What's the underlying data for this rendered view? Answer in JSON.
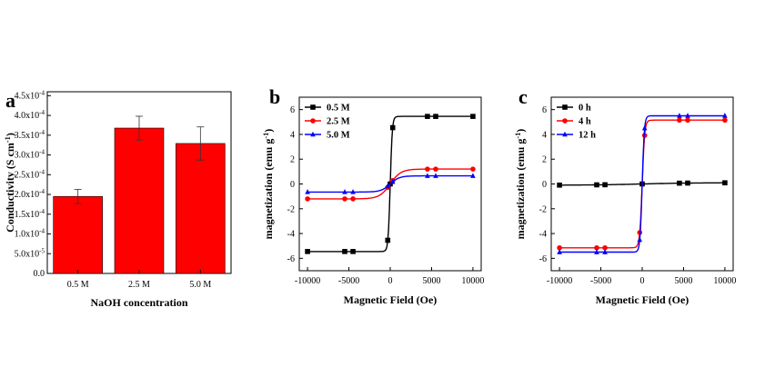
{
  "chart_data": [
    {
      "type": "bar",
      "panel": "a",
      "categories": [
        "0.5 M",
        "2.5 M",
        "5.0 M"
      ],
      "values": [
        0.000195,
        0.000368,
        0.000329
      ],
      "errors": [
        1.8e-05,
        3e-05,
        4.2e-05
      ],
      "ytick_labels": [
        "0.0",
        "5.0x10-5",
        "1.0x10-4",
        "1.5x10-4",
        "2.0x10-4",
        "2.5x10-4",
        "3.0x10-4",
        "3.5x10-4",
        "4.0x10-4",
        "4.5x10-4"
      ],
      "yticks": [
        0,
        5e-05,
        0.0001,
        0.00015,
        0.0002,
        0.00025,
        0.0003,
        0.00035,
        0.0004,
        0.00045
      ],
      "ylim": [
        0,
        0.00046
      ],
      "xlabel": "NaOH concentration",
      "ylabel": "Conductivity (S cm-1)",
      "bar_color": "#ff0000"
    },
    {
      "type": "line",
      "panel": "b",
      "xlabel": "Magnetic Field (Oe)",
      "ylabel": "magnetization (emu g-1)",
      "xlim": [
        -11000,
        11000
      ],
      "ylim": [
        -7,
        7
      ],
      "xticks": [
        -10000,
        -5000,
        0,
        5000,
        10000
      ],
      "yticks": [
        -6,
        -4,
        -2,
        0,
        2,
        4,
        6
      ],
      "legend_position": "top-left",
      "series": [
        {
          "name": "0.5 M",
          "color": "#000000",
          "marker": "square",
          "ms": 5.45,
          "k": 250,
          "x_markers": [
            -10000,
            -5500,
            -4500,
            -300,
            0,
            300,
            4500,
            5500,
            10000
          ]
        },
        {
          "name": "2.5 M",
          "color": "#ff0000",
          "marker": "circle",
          "ms": 1.2,
          "k": 1300,
          "x_markers": [
            -10000,
            -5500,
            -4500,
            -300,
            300,
            4500,
            5500,
            10000
          ]
        },
        {
          "name": "5.0 M",
          "color": "#0000ff",
          "marker": "triangle",
          "ms": 0.65,
          "k": 1100,
          "x_markers": [
            -10000,
            -5500,
            -4500,
            -300,
            300,
            4500,
            5500,
            10000
          ]
        }
      ]
    },
    {
      "type": "line",
      "panel": "c",
      "xlabel": "Magnetic Field (Oe)",
      "ylabel": "magnetization (emu g-1)",
      "xlim": [
        -11000,
        11000
      ],
      "ylim": [
        -7,
        7
      ],
      "xticks": [
        -10000,
        -5000,
        0,
        5000,
        10000
      ],
      "yticks": [
        -6,
        -4,
        -2,
        0,
        2,
        4,
        6
      ],
      "legend_position": "top-left",
      "series": [
        {
          "name": "0 h",
          "color": "#000000",
          "marker": "square",
          "ms": 0.1,
          "k": 6000,
          "x_markers": [
            -10000,
            -5500,
            -4500,
            0,
            4500,
            5500,
            10000
          ]
        },
        {
          "name": "4 h",
          "color": "#ff0000",
          "marker": "circle",
          "ms": 5.15,
          "k": 300,
          "x_markers": [
            -10000,
            -5500,
            -4500,
            -300,
            300,
            4500,
            5500,
            10000
          ]
        },
        {
          "name": "12 h",
          "color": "#0000ff",
          "marker": "triangle",
          "ms": 5.5,
          "k": 260,
          "x_markers": [
            -10000,
            -5500,
            -4500,
            -300,
            300,
            4500,
            5500,
            10000
          ]
        }
      ]
    }
  ]
}
